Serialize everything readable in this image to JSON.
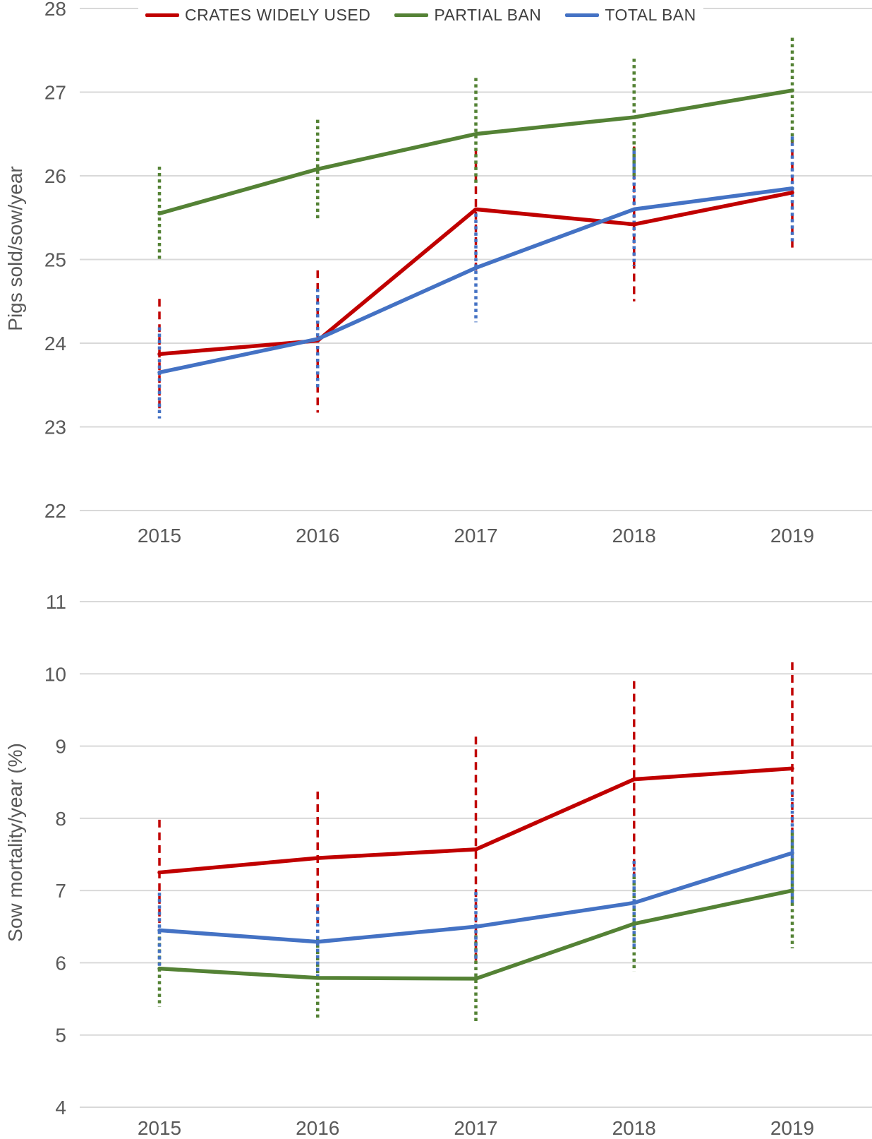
{
  "colors": {
    "crates_widely_used": "#c00000",
    "partial_ban": "#548235",
    "total_ban": "#4472c4",
    "grid": "#d9d9d9",
    "axis_text": "#595959",
    "legend_text": "#404040"
  },
  "legend": [
    {
      "label": "CRATES WIDELY USED",
      "color": "#c00000"
    },
    {
      "label": "PARTIAL BAN",
      "color": "#548235"
    },
    {
      "label": "TOTAL BAN",
      "color": "#4472c4"
    }
  ],
  "chart_data": [
    {
      "type": "line",
      "title": "",
      "ylabel": "Pigs sold/sow/year",
      "xlabel": "",
      "x": [
        2015,
        2016,
        2017,
        2018,
        2019
      ],
      "ylim": [
        22,
        28
      ],
      "yticks": [
        22,
        23,
        24,
        25,
        26,
        27,
        28
      ],
      "grid": true,
      "legend_position": "top",
      "error_bars": true,
      "series": [
        {
          "name": "CRATES WIDELY USED",
          "color": "#c00000",
          "dash": "dashed",
          "values": [
            23.87,
            24.03,
            25.6,
            25.42,
            25.8
          ],
          "ci_low": [
            23.22,
            23.17,
            24.87,
            24.5,
            25.12
          ],
          "ci_high": [
            24.53,
            24.87,
            26.33,
            26.35,
            26.45
          ]
        },
        {
          "name": "PARTIAL BAN",
          "color": "#548235",
          "dash": "dotted",
          "values": [
            25.55,
            26.08,
            26.5,
            26.7,
            27.02
          ],
          "ci_low": [
            25.0,
            25.47,
            25.88,
            26.0,
            26.4
          ],
          "ci_high": [
            26.11,
            26.67,
            27.17,
            27.4,
            27.65
          ]
        },
        {
          "name": "TOTAL BAN",
          "color": "#4472c4",
          "dash": "dotted",
          "values": [
            23.65,
            24.05,
            24.9,
            25.6,
            25.85
          ],
          "ci_low": [
            23.1,
            23.45,
            24.25,
            24.92,
            25.2
          ],
          "ci_high": [
            24.19,
            24.65,
            25.55,
            26.3,
            26.47
          ]
        }
      ]
    },
    {
      "type": "line",
      "title": "",
      "ylabel": "Sow mortality/year (%)",
      "xlabel": "",
      "x": [
        2015,
        2016,
        2017,
        2018,
        2019
      ],
      "ylim": [
        4,
        11
      ],
      "yticks": [
        4,
        5,
        6,
        7,
        8,
        9,
        10,
        11
      ],
      "grid": true,
      "legend_position": "none",
      "error_bars": true,
      "series": [
        {
          "name": "CRATES WIDELY USED",
          "color": "#c00000",
          "dash": "dashed",
          "values": [
            7.25,
            7.45,
            7.57,
            8.54,
            8.69
          ],
          "ci_low": [
            6.55,
            6.55,
            6.02,
            7.2,
            7.22
          ],
          "ci_high": [
            7.98,
            8.37,
            9.13,
            9.9,
            10.16
          ]
        },
        {
          "name": "PARTIAL BAN",
          "color": "#548235",
          "dash": "dotted",
          "values": [
            5.92,
            5.79,
            5.78,
            6.54,
            7.0
          ],
          "ci_low": [
            5.39,
            5.24,
            5.18,
            5.88,
            6.2
          ],
          "ci_high": [
            6.45,
            6.34,
            6.38,
            7.2,
            7.8
          ]
        },
        {
          "name": "TOTAL BAN",
          "color": "#4472c4",
          "dash": "dotted",
          "values": [
            6.45,
            6.29,
            6.5,
            6.83,
            7.52
          ],
          "ci_low": [
            5.93,
            5.77,
            6.02,
            6.2,
            6.8
          ],
          "ci_high": [
            6.97,
            6.81,
            6.98,
            7.41,
            8.37
          ]
        }
      ]
    }
  ]
}
